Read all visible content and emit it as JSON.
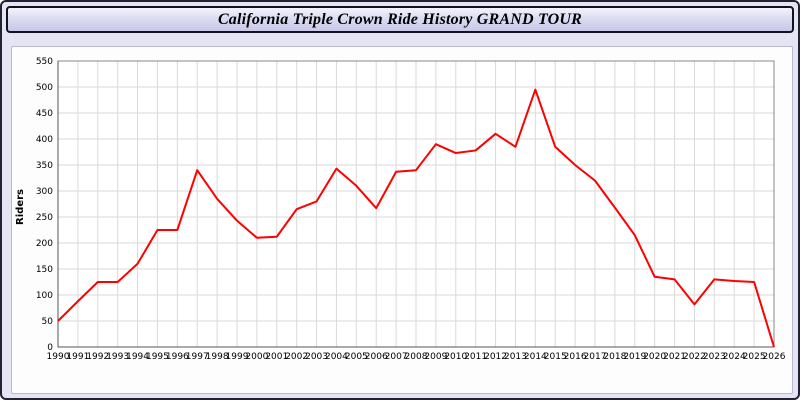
{
  "title_bar": {
    "title": "California Triple Crown Ride History GRAND TOUR"
  },
  "chart_data": {
    "type": "line",
    "title": "California Triple Crown Ride History GRAND TOUR",
    "xlabel": "",
    "ylabel": "Riders",
    "ylim": [
      0,
      550
    ],
    "ytick_step": 50,
    "grid": true,
    "legend_position": "none",
    "line_color": "#ff0000",
    "x": [
      1990,
      1991,
      1992,
      1993,
      1994,
      1995,
      1996,
      1997,
      1998,
      1999,
      2000,
      2001,
      2002,
      2003,
      2004,
      2005,
      2006,
      2007,
      2008,
      2009,
      2010,
      2011,
      2012,
      2013,
      2014,
      2015,
      2016,
      2017,
      2018,
      2019,
      2020,
      2021,
      2022,
      2023,
      2024,
      2025,
      2026
    ],
    "values": [
      50,
      88,
      125,
      125,
      160,
      225,
      225,
      340,
      285,
      243,
      210,
      212,
      265,
      280,
      343,
      310,
      267,
      337,
      340,
      390,
      373,
      378,
      410,
      385,
      495,
      385,
      350,
      320,
      268,
      215,
      135,
      130,
      82,
      130,
      127,
      125,
      0
    ]
  },
  "colors": {
    "page_background": "#e4e4f4",
    "titlebar_background": "#d8d8f0",
    "panel_background": "#fdfdfd",
    "grid_color": "#dadada",
    "axis_color": "#888888",
    "text_color": "#000000",
    "line_color": "#ff0000"
  }
}
